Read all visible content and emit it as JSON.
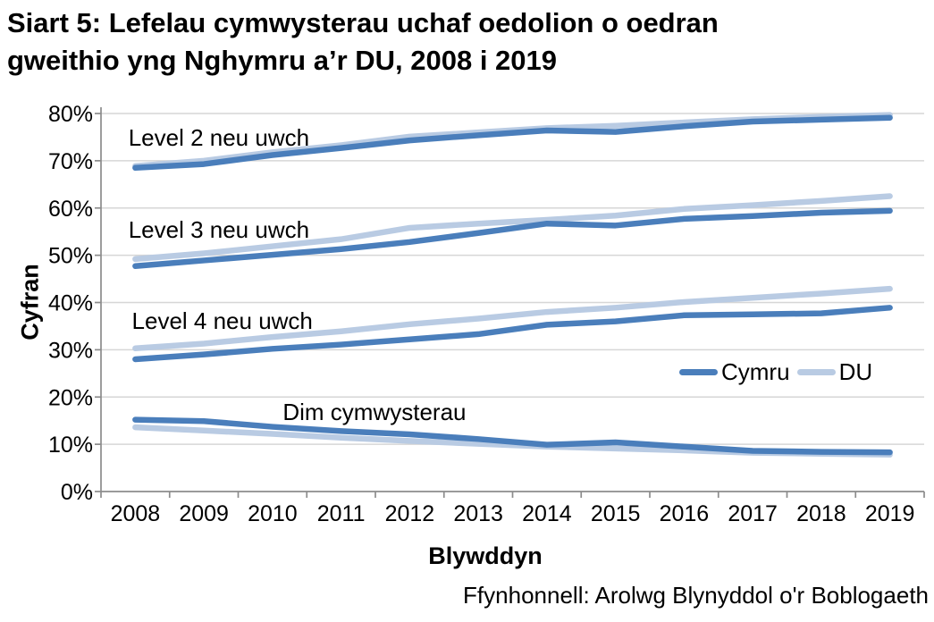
{
  "title": {
    "line1": "Siart 5: Lefelau cymwysterau uchaf oedolion o oedran",
    "line2": "gweithio yng Nghymru a’r DU, 2008 i 2019"
  },
  "source": {
    "text": "Ffynhonnell: Arolwg Blynyddol o'r Boblogaeth"
  },
  "legend": {
    "items": [
      {
        "label": "Cymru",
        "color": "#4a7ebb"
      },
      {
        "label": "DU",
        "color": "#b9cbe3"
      }
    ]
  },
  "colors": {
    "cymru_line": "#4a7ebb",
    "du_line": "#b9cbe3",
    "gridline": "#d6d6d6",
    "axis": "#8c8c8c",
    "text": "#000000"
  },
  "chart_data": {
    "type": "line",
    "title": "Siart 5: Lefelau cymwysterau uchaf oedolion o oedran gweithio yng Nghymru a’r DU, 2008 i 2019",
    "xlabel": "Blywddyn",
    "ylabel": "Cyfran",
    "ylim": [
      0,
      80
    ],
    "ytick_step": 10,
    "ytick_suffix": "%",
    "grid": true,
    "legend_position": "inside-right",
    "categories": [
      "2008",
      "2009",
      "2010",
      "2011",
      "2012",
      "2013",
      "2014",
      "2015",
      "2016",
      "2017",
      "2018",
      "2019"
    ],
    "series": [
      {
        "group": "Level 2 neu uwch",
        "name": "Cymru",
        "color": "#4a7ebb",
        "values": [
          68.5,
          69.3,
          71.2,
          72.7,
          74.3,
          75.4,
          76.4,
          76.1,
          77.3,
          78.3,
          78.7,
          79.1
        ]
      },
      {
        "group": "Level 2 neu uwch",
        "name": "DU",
        "color": "#b9cbe3",
        "values": [
          68.9,
          70.0,
          71.8,
          73.3,
          75.1,
          76.0,
          76.9,
          77.4,
          78.1,
          78.8,
          79.3,
          79.7
        ]
      },
      {
        "group": "Level 3 neu uwch",
        "name": "Cymru",
        "color": "#4a7ebb",
        "values": [
          47.7,
          48.9,
          50.1,
          51.3,
          52.8,
          54.7,
          56.7,
          56.3,
          57.7,
          58.3,
          59.0,
          59.4
        ]
      },
      {
        "group": "Level 3 neu uwch",
        "name": "DU",
        "color": "#b9cbe3",
        "values": [
          49.2,
          50.4,
          51.9,
          53.4,
          55.8,
          56.7,
          57.5,
          58.4,
          59.8,
          60.6,
          61.5,
          62.5
        ]
      },
      {
        "group": "Level 4 neu uwch",
        "name": "Cymru",
        "color": "#4a7ebb",
        "values": [
          28.0,
          29.0,
          30.2,
          31.1,
          32.2,
          33.3,
          35.3,
          36.0,
          37.3,
          37.5,
          37.7,
          38.9
        ]
      },
      {
        "group": "Level 4 neu uwch",
        "name": "DU",
        "color": "#b9cbe3",
        "values": [
          30.3,
          31.3,
          32.7,
          33.9,
          35.4,
          36.6,
          38.0,
          38.9,
          40.1,
          41.0,
          41.9,
          42.9
        ]
      },
      {
        "group": "Dim cymwysterau",
        "name": "Cymru",
        "color": "#4a7ebb",
        "values": [
          15.2,
          14.9,
          13.7,
          12.8,
          12.1,
          11.1,
          9.9,
          10.4,
          9.5,
          8.6,
          8.4,
          8.3
        ]
      },
      {
        "group": "Dim cymwysterau",
        "name": "DU",
        "color": "#b9cbe3",
        "values": [
          13.6,
          12.9,
          12.2,
          11.4,
          10.7,
          10.1,
          9.5,
          9.1,
          8.7,
          8.2,
          8.0,
          7.8
        ]
      }
    ],
    "annotations": [
      {
        "text": "Level 2 neu uwch",
        "x": 2007.9,
        "y": 73.2,
        "anchor": "start"
      },
      {
        "text": "Level 3 neu uwch",
        "x": 2007.9,
        "y": 53.7,
        "anchor": "start"
      },
      {
        "text": "Level 4 neu uwch",
        "x": 2007.95,
        "y": 34.4,
        "anchor": "start"
      },
      {
        "text": "Dim cymwysterau",
        "x": 2010.15,
        "y": 15.1,
        "anchor": "start"
      }
    ]
  }
}
